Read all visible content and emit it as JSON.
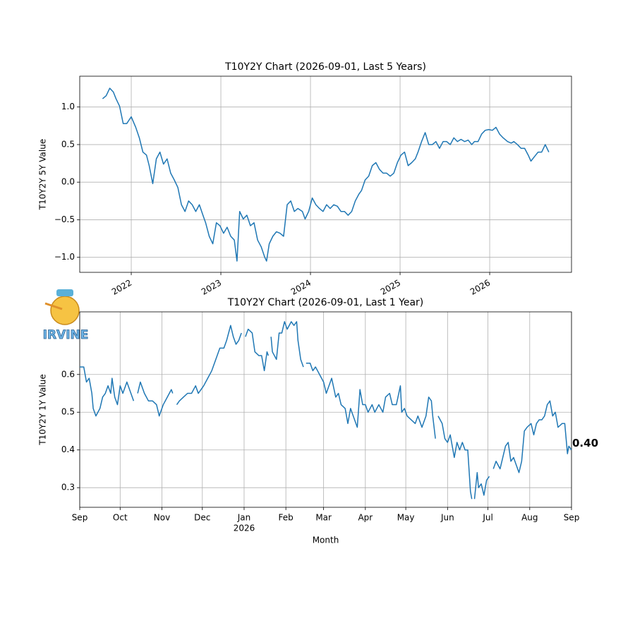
{
  "logo": {
    "text": "IRVINE"
  },
  "chart_data": [
    {
      "type": "line",
      "title": "T10Y2Y Chart (2026-09-01, Last 5 Years)",
      "y_label": "T10Y2Y 5Y Value",
      "xlim": [
        2021.425,
        2026.913
      ],
      "xticks": [
        2022,
        2023,
        2024,
        2025,
        2026
      ],
      "ylim": [
        -1.2,
        1.41
      ],
      "yticks": [
        {
          "value": -1.0,
          "label": "−1.0"
        },
        {
          "value": -0.5,
          "label": "−0.5"
        },
        {
          "value": 0.0,
          "label": "0.0"
        },
        {
          "value": 0.5,
          "label": "0.5"
        },
        {
          "value": 1.0,
          "label": "1.0"
        }
      ],
      "grid": true,
      "xtick_rotation": -30,
      "x": [
        2021.68,
        2021.72,
        2021.76,
        2021.8,
        2021.83,
        2021.87,
        2021.91,
        2021.95,
        2022.0,
        2022.05,
        2022.09,
        2022.13,
        2022.17,
        2022.2,
        2022.24,
        2022.28,
        2022.32,
        2022.36,
        2022.4,
        2022.44,
        2022.48,
        2022.52,
        2022.56,
        2022.6,
        2022.64,
        2022.68,
        2022.72,
        2022.76,
        2022.8,
        2022.83,
        2022.87,
        2022.91,
        2022.95,
        2022.99,
        2023.03,
        2023.07,
        2023.11,
        2023.15,
        2023.18,
        2023.21,
        2023.25,
        2023.29,
        2023.33,
        2023.37,
        2023.41,
        2023.45,
        2023.49,
        2023.51,
        2023.54,
        2023.58,
        2023.62,
        2023.66,
        2023.7,
        2023.74,
        2023.78,
        2023.82,
        2023.86,
        2023.91,
        2023.94,
        2023.98,
        2024.02,
        2024.06,
        2024.1,
        2024.14,
        2024.18,
        2024.22,
        2024.26,
        2024.3,
        2024.34,
        2024.38,
        2024.42,
        2024.46,
        2024.5,
        2024.54,
        2024.57,
        2024.61,
        2024.65,
        2024.69,
        2024.73,
        2024.77,
        2024.81,
        2024.85,
        2024.89,
        2024.93,
        2024.97,
        2025.01,
        2025.05,
        2025.09,
        2025.13,
        2025.17,
        2025.2,
        2025.24,
        2025.28,
        2025.32,
        2025.36,
        2025.4,
        2025.44,
        2025.48,
        2025.52,
        2025.56,
        2025.6,
        2025.64,
        2025.68,
        2025.72,
        2025.76,
        2025.8,
        2025.83,
        2025.87,
        2025.91,
        2025.95,
        2025.99,
        2026.03,
        2026.07,
        2026.11,
        2026.15,
        2026.2,
        2026.24,
        2026.27,
        2026.31,
        2026.35,
        2026.39,
        2026.43,
        2026.46,
        2026.5,
        2026.54,
        2026.58,
        2026.62,
        2026.66
      ],
      "series": [
        {
          "name": "T10Y2Y",
          "color": "#1f77b4",
          "values": [
            1.11,
            1.15,
            1.25,
            1.2,
            1.11,
            1.01,
            0.78,
            0.78,
            0.87,
            0.73,
            0.59,
            0.4,
            0.36,
            0.22,
            -0.02,
            0.31,
            0.4,
            0.24,
            0.31,
            0.12,
            0.03,
            -0.07,
            -0.3,
            -0.39,
            -0.25,
            -0.3,
            -0.39,
            -0.3,
            -0.44,
            -0.54,
            -0.72,
            -0.82,
            -0.54,
            -0.58,
            -0.68,
            -0.6,
            -0.72,
            -0.77,
            -1.05,
            -0.39,
            -0.49,
            -0.44,
            -0.58,
            -0.54,
            -0.77,
            -0.86,
            -1.0,
            -1.05,
            -0.82,
            -0.72,
            -0.66,
            -0.68,
            -0.72,
            -0.3,
            -0.25,
            -0.39,
            -0.35,
            -0.39,
            -0.49,
            -0.39,
            -0.21,
            -0.3,
            -0.35,
            -0.39,
            -0.3,
            -0.35,
            -0.3,
            -0.32,
            -0.39,
            -0.39,
            -0.44,
            -0.39,
            -0.25,
            -0.16,
            -0.11,
            0.03,
            0.08,
            0.22,
            0.26,
            0.17,
            0.12,
            0.12,
            0.08,
            0.12,
            0.26,
            0.36,
            0.4,
            0.22,
            0.26,
            0.31,
            0.4,
            0.54,
            0.66,
            0.5,
            0.5,
            0.54,
            0.45,
            0.54,
            0.54,
            0.5,
            0.59,
            0.54,
            0.57,
            0.54,
            0.56,
            0.5,
            0.54,
            0.54,
            0.64,
            0.69,
            0.7,
            0.69,
            0.73,
            0.64,
            0.59,
            0.54,
            0.52,
            0.54,
            0.5,
            0.45,
            0.45,
            0.36,
            0.28,
            0.34,
            0.4,
            0.4,
            0.5,
            0.4
          ]
        }
      ]
    },
    {
      "type": "line",
      "title": "T10Y2Y Chart (2026-09-01, Last 1 Year)",
      "y_label": "T10Y2Y 1Y Value",
      "x_label": "Month",
      "xlim": [
        0,
        365
      ],
      "xticks": [
        {
          "value": 0,
          "label": "Sep"
        },
        {
          "value": 30,
          "label": "Oct"
        },
        {
          "value": 61,
          "label": "Nov"
        },
        {
          "value": 91,
          "label": "Dec"
        },
        {
          "value": 122,
          "label": "Jan"
        },
        {
          "value": 153,
          "label": "Feb"
        },
        {
          "value": 181,
          "label": "Mar"
        },
        {
          "value": 212,
          "label": "Apr"
        },
        {
          "value": 242,
          "label": "May"
        },
        {
          "value": 273,
          "label": "Jun"
        },
        {
          "value": 303,
          "label": "Jul"
        },
        {
          "value": 334,
          "label": "Aug"
        },
        {
          "value": 365,
          "label": "Sep"
        }
      ],
      "xticks_secondary": [
        {
          "value": 122,
          "label": "2026"
        }
      ],
      "ylim": [
        0.248,
        0.766
      ],
      "yticks": [
        0.3,
        0.4,
        0.5,
        0.6
      ],
      "grid": true,
      "annotation": {
        "x": 365,
        "value": 0.4,
        "label": "0.40"
      },
      "x": [
        0,
        3,
        5,
        7,
        9,
        10,
        12,
        15,
        17,
        19,
        21,
        23,
        24,
        26,
        28,
        30,
        32,
        35,
        38,
        40,
        42,
        43,
        45,
        48,
        51,
        54,
        57,
        59,
        62,
        65,
        68,
        69,
        70,
        72,
        74,
        77,
        80,
        83,
        86,
        88,
        92,
        95,
        98,
        101,
        104,
        107,
        109,
        112,
        114,
        116,
        118,
        120,
        121,
        123,
        125,
        128,
        130,
        133,
        135,
        137,
        139,
        140,
        141,
        142,
        143,
        146,
        148,
        150,
        152,
        154,
        157,
        159,
        161,
        162,
        164,
        166,
        167,
        168,
        171,
        173,
        175,
        178,
        181,
        183,
        185,
        187,
        190,
        192,
        194,
        197,
        199,
        201,
        203,
        206,
        208,
        210,
        212,
        214,
        217,
        219,
        222,
        225,
        227,
        230,
        232,
        235,
        238,
        239,
        241,
        243,
        246,
        249,
        251,
        254,
        257,
        259,
        261,
        262,
        264,
        265,
        266,
        269,
        271,
        273,
        275,
        278,
        280,
        282,
        284,
        286,
        288,
        290,
        291,
        292,
        293,
        295,
        296,
        298,
        300,
        302,
        304,
        305,
        307,
        309,
        312,
        314,
        316,
        318,
        320,
        322,
        324,
        326,
        328,
        330,
        332,
        335,
        337,
        339,
        341,
        343,
        345,
        347,
        349,
        351,
        353,
        355,
        358,
        360,
        362,
        363,
        365
      ],
      "series": [
        {
          "name": "T10Y2Y",
          "color": "#1f77b4",
          "values": [
            0.62,
            0.62,
            0.58,
            0.59,
            0.55,
            0.51,
            0.49,
            0.51,
            0.54,
            0.55,
            0.57,
            0.55,
            0.59,
            0.54,
            0.52,
            0.57,
            0.55,
            0.58,
            0.55,
            0.53,
            null,
            0.55,
            0.58,
            0.55,
            0.53,
            0.53,
            0.52,
            0.49,
            0.52,
            0.54,
            0.56,
            0.55,
            null,
            0.52,
            0.53,
            0.54,
            0.55,
            0.55,
            0.57,
            0.55,
            0.57,
            0.59,
            0.61,
            0.64,
            0.67,
            0.67,
            0.69,
            0.73,
            0.7,
            0.68,
            0.69,
            0.71,
            null,
            0.7,
            0.72,
            0.71,
            0.66,
            0.65,
            0.65,
            0.61,
            0.66,
            0.65,
            null,
            0.7,
            0.66,
            0.64,
            0.71,
            0.71,
            0.74,
            0.72,
            0.74,
            0.73,
            0.74,
            0.69,
            0.64,
            0.62,
            null,
            0.63,
            0.63,
            0.61,
            0.62,
            0.6,
            0.58,
            0.55,
            0.57,
            0.59,
            0.54,
            0.55,
            0.52,
            0.51,
            0.47,
            0.51,
            0.49,
            0.46,
            0.56,
            0.52,
            0.52,
            0.5,
            0.52,
            0.5,
            0.52,
            0.5,
            0.54,
            0.55,
            0.52,
            0.52,
            0.57,
            0.5,
            0.51,
            0.49,
            0.48,
            0.47,
            0.49,
            0.46,
            0.49,
            0.54,
            0.53,
            0.49,
            0.43,
            null,
            0.49,
            0.47,
            0.43,
            0.42,
            0.44,
            0.38,
            0.42,
            0.4,
            0.42,
            0.4,
            0.4,
            0.29,
            0.27,
            null,
            0.27,
            0.34,
            0.3,
            0.31,
            0.28,
            0.32,
            0.33,
            null,
            0.35,
            0.37,
            0.35,
            0.38,
            0.41,
            0.42,
            0.37,
            0.38,
            0.36,
            0.34,
            0.37,
            0.45,
            0.46,
            0.47,
            0.44,
            0.47,
            0.48,
            0.48,
            0.49,
            0.52,
            0.53,
            0.49,
            0.5,
            0.46,
            0.47,
            0.47,
            0.39,
            0.41,
            0.4
          ]
        }
      ]
    }
  ]
}
